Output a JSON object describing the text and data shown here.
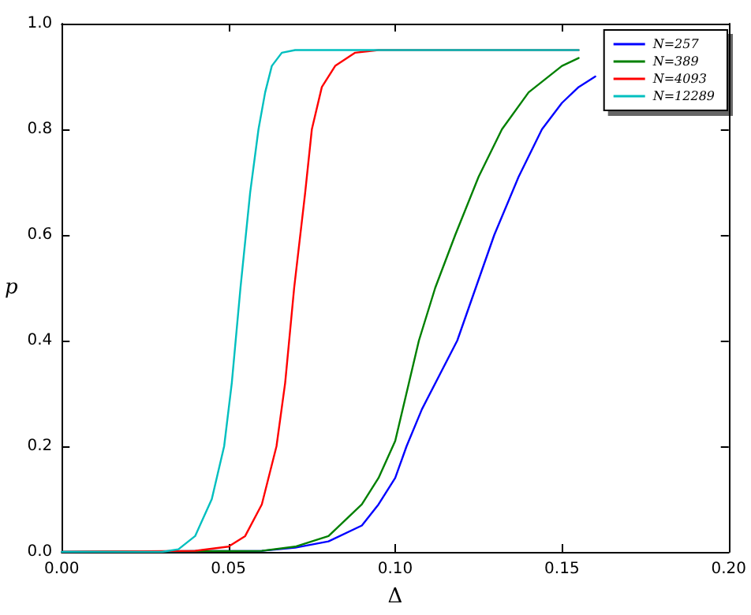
{
  "chart_data": {
    "type": "line",
    "xlabel": "Δ",
    "ylabel": "p",
    "xlim": [
      0,
      0.2
    ],
    "ylim": [
      0,
      1
    ],
    "xticks": [
      {
        "value": 0,
        "label": "0.00"
      },
      {
        "value": 0.05,
        "label": "0.05"
      },
      {
        "value": 0.1,
        "label": "0.10"
      },
      {
        "value": 0.15,
        "label": "0.15"
      },
      {
        "value": 0.2,
        "label": "0.20"
      }
    ],
    "yticks": [
      {
        "value": 0,
        "label": "0.0"
      },
      {
        "value": 0.2,
        "label": "0.2"
      },
      {
        "value": 0.4,
        "label": "0.4"
      },
      {
        "value": 0.6,
        "label": "0.6"
      },
      {
        "value": 0.8,
        "label": "0.8"
      },
      {
        "value": 1,
        "label": "1.0"
      }
    ],
    "grid": false,
    "legend": "top right",
    "marker": "none",
    "line_style": "solid",
    "series": [
      {
        "name": "N=257",
        "color": "#0000ff",
        "x": [
          0,
          0.06,
          0.07,
          0.08,
          0.09,
          0.095,
          0.1,
          0.1034,
          0.108,
          0.1186,
          0.1297,
          0.137,
          0.144,
          0.15,
          0.155,
          0.16
        ],
        "values": [
          0,
          0.002,
          0.008,
          0.02,
          0.05,
          0.09,
          0.14,
          0.2,
          0.27,
          0.4,
          0.6,
          0.71,
          0.8,
          0.85,
          0.88,
          0.9
        ]
      },
      {
        "name": "N=389",
        "color": "#008000",
        "x": [
          0,
          0.06,
          0.07,
          0.08,
          0.09,
          0.095,
          0.1,
          0.1071,
          0.112,
          0.118,
          0.125,
          0.132,
          0.14,
          0.15,
          0.155
        ],
        "values": [
          0,
          0.002,
          0.01,
          0.03,
          0.09,
          0.14,
          0.21,
          0.4,
          0.5,
          0.6,
          0.71,
          0.8,
          0.87,
          0.92,
          0.935
        ]
      },
      {
        "name": "N=4093",
        "color": "#ff0000",
        "x": [
          0,
          0.04,
          0.05,
          0.055,
          0.06,
          0.0644,
          0.067,
          0.0697,
          0.073,
          0.075,
          0.078,
          0.082,
          0.088,
          0.095,
          0.155
        ],
        "values": [
          0,
          0.002,
          0.01,
          0.03,
          0.09,
          0.2,
          0.32,
          0.5,
          0.68,
          0.8,
          0.88,
          0.92,
          0.945,
          0.95,
          0.95
        ]
      },
      {
        "name": "N=12289",
        "color": "#00bfbf",
        "x": [
          0,
          0.03,
          0.035,
          0.04,
          0.045,
          0.0487,
          0.051,
          0.0536,
          0.0565,
          0.059,
          0.061,
          0.063,
          0.066,
          0.07,
          0.155
        ],
        "values": [
          0,
          0,
          0.005,
          0.03,
          0.1,
          0.2,
          0.32,
          0.5,
          0.68,
          0.8,
          0.87,
          0.92,
          0.945,
          0.95,
          0.95
        ]
      }
    ]
  }
}
